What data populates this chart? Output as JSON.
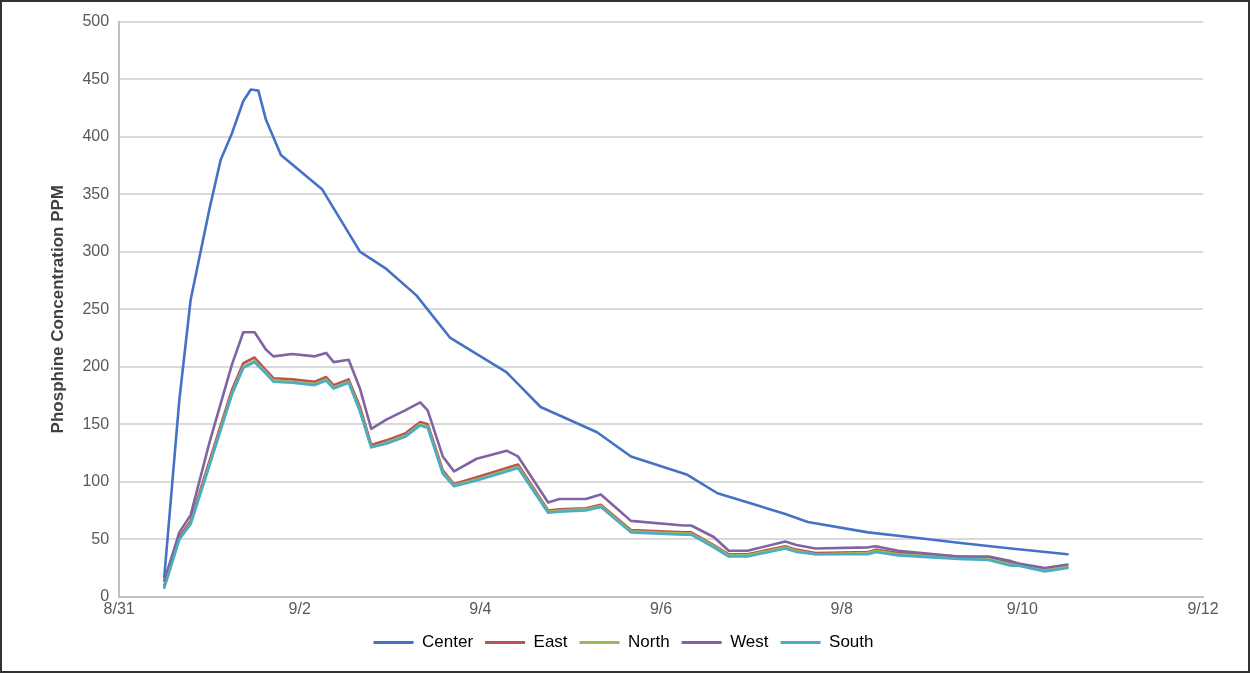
{
  "chart_data": {
    "type": "line",
    "ylabel": "Phosphine Concentration PPM",
    "xlim": [
      "--08-31",
      "--09-12"
    ],
    "xticks": [
      {
        "value": "--08-31",
        "label": "8/31"
      },
      {
        "value": "--09-02",
        "label": "9/2"
      },
      {
        "value": "--09-04",
        "label": "9/4"
      },
      {
        "value": "--09-06",
        "label": "9/6"
      },
      {
        "value": "--09-08",
        "label": "9/8"
      },
      {
        "value": "--09-10",
        "label": "9/10"
      },
      {
        "value": "--09-12",
        "label": "9/12"
      }
    ],
    "ylim": [
      0,
      500
    ],
    "yticks": [
      0,
      50,
      100,
      150,
      200,
      250,
      300,
      350,
      400,
      450,
      500
    ],
    "grid": "y",
    "legend": "bottom",
    "marker": "none",
    "line_style": "solid",
    "series": [
      {
        "name": "Center",
        "color": "#4472c4",
        "x": [
          "--08-31T12:00",
          "--08-31T16:00",
          "--08-31T19:00",
          "--09-01T00:00",
          "--09-01T03:00",
          "--09-01T06:00",
          "--09-01T09:00",
          "--09-01T11:00",
          "--09-01T13:00",
          "--09-01T15:00",
          "--09-01T19:00",
          "--09-02T06:00",
          "--09-02T16:00",
          "--09-02T23:00",
          "--09-03T07:00",
          "--09-03T16:00",
          "--09-04T07:00",
          "--09-04T16:00",
          "--09-05T07:00",
          "--09-05T16:00",
          "--09-06T07:00",
          "--09-06T15:00",
          "--09-07T09:00",
          "--09-07T15:00",
          "--09-08T07:00",
          "--09-08T18:00",
          "--09-09T07:00",
          "--09-09T21:00",
          "--09-10T12:00"
        ],
        "values": [
          17,
          171,
          258,
          337,
          380,
          403,
          431,
          441,
          440,
          415,
          384,
          354,
          300,
          285,
          262,
          225,
          195,
          165,
          143,
          122,
          106,
          90,
          72,
          65,
          56,
          52,
          47,
          42,
          37
        ]
      },
      {
        "name": "East",
        "color": "#c0504d",
        "x": [
          "--08-31T12:00",
          "--08-31T16:00",
          "--08-31T19:00",
          "--09-01T00:00",
          "--09-01T06:00",
          "--09-01T09:00",
          "--09-01T12:00",
          "--09-01T15:00",
          "--09-01T17:00",
          "--09-01T22:00",
          "--09-02T04:00",
          "--09-02T07:00",
          "--09-02T09:00",
          "--09-02T13:00",
          "--09-02T16:00",
          "--09-02T19:00",
          "--09-02T23:00",
          "--09-03T04:00",
          "--09-03T08:00",
          "--09-03T10:00",
          "--09-03T14:00",
          "--09-03T17:00",
          "--09-03T23:00",
          "--09-04T07:00",
          "--09-04T10:00",
          "--09-04T18:00",
          "--09-04T21:00",
          "--09-05T04:00",
          "--09-05T08:00",
          "--09-05T16:00",
          "--09-06T06:00",
          "--09-06T08:00",
          "--09-06T14:00",
          "--09-06T18:00",
          "--09-06T23:00",
          "--09-07T09:00",
          "--09-07T12:00",
          "--09-07T17:00",
          "--09-08T07:00",
          "--09-08T09:00",
          "--09-08T15:00",
          "--09-09T07:00",
          "--09-09T15:00",
          "--09-09T21:00",
          "--09-09T23:00"
        ],
        "values": [
          10,
          52,
          66,
          118,
          180,
          203,
          208,
          197,
          190,
          189,
          187,
          191,
          184,
          189,
          165,
          132,
          136,
          142,
          152,
          150,
          110,
          98,
          104,
          112,
          115,
          75,
          76,
          77,
          80,
          58,
          56,
          56,
          45,
          37,
          37,
          44,
          41,
          38,
          39,
          41,
          38,
          35,
          34,
          29,
          29
        ]
      },
      {
        "name": "North",
        "color": "#9bbb59",
        "x": [
          "--08-31T12:00",
          "--08-31T16:00",
          "--08-31T19:00",
          "--09-01T00:00",
          "--09-01T06:00",
          "--09-01T09:00",
          "--09-01T12:00",
          "--09-01T15:00",
          "--09-01T17:00",
          "--09-01T22:00",
          "--09-02T04:00",
          "--09-02T07:00",
          "--09-02T09:00",
          "--09-02T13:00",
          "--09-02T16:00",
          "--09-02T19:00",
          "--09-02T23:00",
          "--09-03T04:00",
          "--09-03T08:00",
          "--09-03T10:00",
          "--09-03T14:00",
          "--09-03T17:00",
          "--09-03T23:00",
          "--09-04T07:00",
          "--09-04T10:00",
          "--09-04T18:00",
          "--09-04T21:00",
          "--09-05T04:00",
          "--09-05T08:00",
          "--09-05T16:00",
          "--09-06T06:00",
          "--09-06T08:00",
          "--09-06T14:00",
          "--09-06T18:00",
          "--09-06T23:00",
          "--09-07T09:00",
          "--09-07T12:00",
          "--09-07T17:00",
          "--09-08T07:00",
          "--09-08T09:00",
          "--09-08T15:00",
          "--09-09T07:00",
          "--09-09T15:00",
          "--09-09T21:00",
          "--09-09T23:00",
          "--09-10T06:00",
          "--09-10T12:00"
        ],
        "values": [
          8,
          50,
          64,
          115,
          177,
          200,
          205,
          195,
          188,
          187,
          185,
          189,
          182,
          187,
          162,
          130,
          134,
          140,
          150,
          148,
          108,
          97,
          102,
          110,
          113,
          74,
          75,
          76,
          79,
          57,
          55,
          55,
          44,
          36,
          36,
          43,
          40,
          37,
          38,
          40,
          37,
          34,
          33,
          28,
          28,
          23,
          26
        ]
      },
      {
        "name": "West",
        "color": "#8064a2",
        "x": [
          "--08-31T12:00",
          "--08-31T16:00",
          "--08-31T19:00",
          "--09-01T00:00",
          "--09-01T06:00",
          "--09-01T09:00",
          "--09-01T12:00",
          "--09-01T15:00",
          "--09-01T17:00",
          "--09-01T22:00",
          "--09-02T04:00",
          "--09-02T07:00",
          "--09-02T09:00",
          "--09-02T13:00",
          "--09-02T16:00",
          "--09-02T19:00",
          "--09-02T23:00",
          "--09-03T04:00",
          "--09-03T08:00",
          "--09-03T10:00",
          "--09-03T14:00",
          "--09-03T17:00",
          "--09-03T23:00",
          "--09-04T07:00",
          "--09-04T10:00",
          "--09-04T18:00",
          "--09-04T21:00",
          "--09-05T04:00",
          "--09-05T08:00",
          "--09-05T16:00",
          "--09-06T06:00",
          "--09-06T08:00",
          "--09-06T14:00",
          "--09-06T18:00",
          "--09-06T23:00",
          "--09-07T09:00",
          "--09-07T12:00",
          "--09-07T17:00",
          "--09-08T07:00",
          "--09-08T09:00",
          "--09-08T15:00",
          "--09-09T07:00",
          "--09-09T15:00",
          "--09-09T21:00",
          "--09-09T23:00",
          "--09-10T06:00",
          "--09-10T12:00"
        ],
        "values": [
          14,
          56,
          71,
          134,
          202,
          230,
          230,
          215,
          209,
          211,
          209,
          212,
          204,
          206,
          181,
          146,
          154,
          162,
          169,
          162,
          122,
          109,
          120,
          127,
          122,
          82,
          85,
          85,
          89,
          66,
          62,
          62,
          52,
          40,
          40,
          48,
          45,
          42,
          43,
          44,
          40,
          35,
          35,
          31,
          29,
          25,
          28
        ]
      },
      {
        "name": "South",
        "color": "#4bacc6",
        "x": [
          "--08-31T12:00",
          "--08-31T16:00",
          "--08-31T19:00",
          "--09-01T00:00",
          "--09-01T06:00",
          "--09-01T09:00",
          "--09-01T12:00",
          "--09-01T15:00",
          "--09-01T17:00",
          "--09-01T22:00",
          "--09-02T04:00",
          "--09-02T07:00",
          "--09-02T09:00",
          "--09-02T13:00",
          "--09-02T16:00",
          "--09-02T19:00",
          "--09-02T23:00",
          "--09-03T04:00",
          "--09-03T08:00",
          "--09-03T10:00",
          "--09-03T14:00",
          "--09-03T17:00",
          "--09-03T23:00",
          "--09-04T07:00",
          "--09-04T10:00",
          "--09-04T18:00",
          "--09-04T21:00",
          "--09-05T04:00",
          "--09-05T08:00",
          "--09-05T16:00",
          "--09-06T06:00",
          "--09-06T08:00",
          "--09-06T14:00",
          "--09-06T18:00",
          "--09-06T23:00",
          "--09-07T09:00",
          "--09-07T12:00",
          "--09-07T17:00",
          "--09-08T07:00",
          "--09-08T09:00",
          "--09-08T15:00",
          "--09-09T07:00",
          "--09-09T15:00",
          "--09-09T21:00",
          "--09-09T23:00",
          "--09-10T06:00",
          "--09-10T12:00"
        ],
        "values": [
          8,
          50,
          63,
          114,
          176,
          199,
          204,
          194,
          187,
          186,
          184,
          188,
          181,
          186,
          161,
          130,
          133,
          139,
          149,
          147,
          107,
          96,
          101,
          109,
          112,
          73,
          74,
          75,
          78,
          56,
          54,
          54,
          43,
          35,
          35,
          42,
          39,
          37,
          37,
          39,
          36,
          33,
          32,
          27,
          27,
          22,
          25
        ]
      }
    ]
  }
}
